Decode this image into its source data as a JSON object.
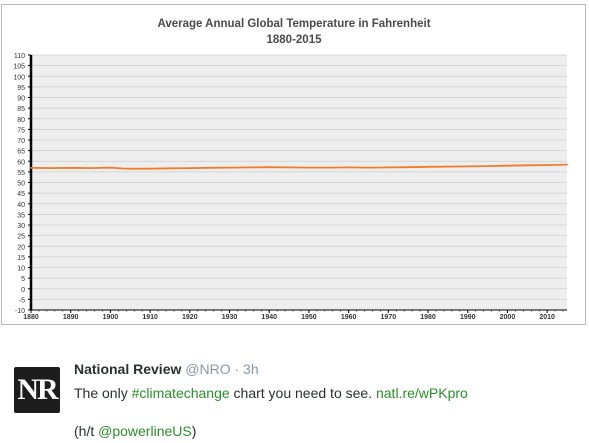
{
  "chart_data": {
    "type": "line",
    "title": "Average Annual Global Temperature in Fahrenheit",
    "subtitle": "1880-2015",
    "xlabel": "",
    "ylabel": "",
    "xlim": [
      1880,
      2015
    ],
    "ylim": [
      -10,
      110
    ],
    "x_ticks": [
      1880,
      1890,
      1900,
      1910,
      1920,
      1930,
      1940,
      1950,
      1960,
      1970,
      1980,
      1990,
      2000,
      2010
    ],
    "x_tick_labels": [
      "1880",
      "1890",
      "1900",
      "1910",
      "1920",
      "1930",
      "1940",
      "1950",
      "1960",
      "1970",
      "1980",
      "1990",
      "2000",
      "2010"
    ],
    "y_ticks": [
      110,
      105,
      100,
      95,
      90,
      85,
      80,
      75,
      70,
      65,
      60,
      55,
      50,
      45,
      40,
      35,
      30,
      25,
      20,
      15,
      10,
      5,
      0,
      -5,
      -10
    ],
    "y_tick_labels": [
      "110",
      "105",
      "100",
      "95",
      "90",
      "85",
      "80",
      "75",
      "70",
      "65",
      "60",
      "55",
      "50",
      "45",
      "40",
      "35",
      "30",
      "25",
      "20",
      "15",
      "10",
      "5",
      "0",
      "-5",
      "-10"
    ],
    "grid": "horizontal",
    "line_color": "#f07c2a",
    "series": [
      {
        "x": [
          1880,
          1885,
          1890,
          1895,
          1900,
          1903,
          1905,
          1910,
          1915,
          1920,
          1925,
          1930,
          1935,
          1940,
          1945,
          1950,
          1955,
          1960,
          1965,
          1970,
          1975,
          1980,
          1985,
          1990,
          1995,
          2000,
          2005,
          2010,
          2015
        ],
        "values": [
          56.9,
          56.8,
          56.9,
          56.8,
          57.0,
          56.6,
          56.5,
          56.5,
          56.7,
          56.8,
          56.9,
          57.0,
          57.1,
          57.2,
          57.1,
          57.0,
          57.0,
          57.1,
          57.0,
          57.1,
          57.2,
          57.4,
          57.5,
          57.6,
          57.7,
          57.9,
          58.1,
          58.2,
          58.4
        ]
      }
    ]
  },
  "tweet": {
    "avatar_text": "NR",
    "author_name": "National Review",
    "author_handle": "@NRO",
    "separator": "·",
    "time": "3h",
    "text_prefix": "The only",
    "hashtag": "#climatechange",
    "text_middle": "chart you need to see.",
    "url": "natl.re/wPKpro",
    "credit_prefix": "(h/t",
    "credit_mention": "@powerlineUS",
    "credit_suffix": ")"
  },
  "colors": {
    "accent_link": "#2a8f2a",
    "handle_gray": "#8899a6",
    "line": "#f07c2a",
    "plot_bg": "#eeeeee"
  }
}
